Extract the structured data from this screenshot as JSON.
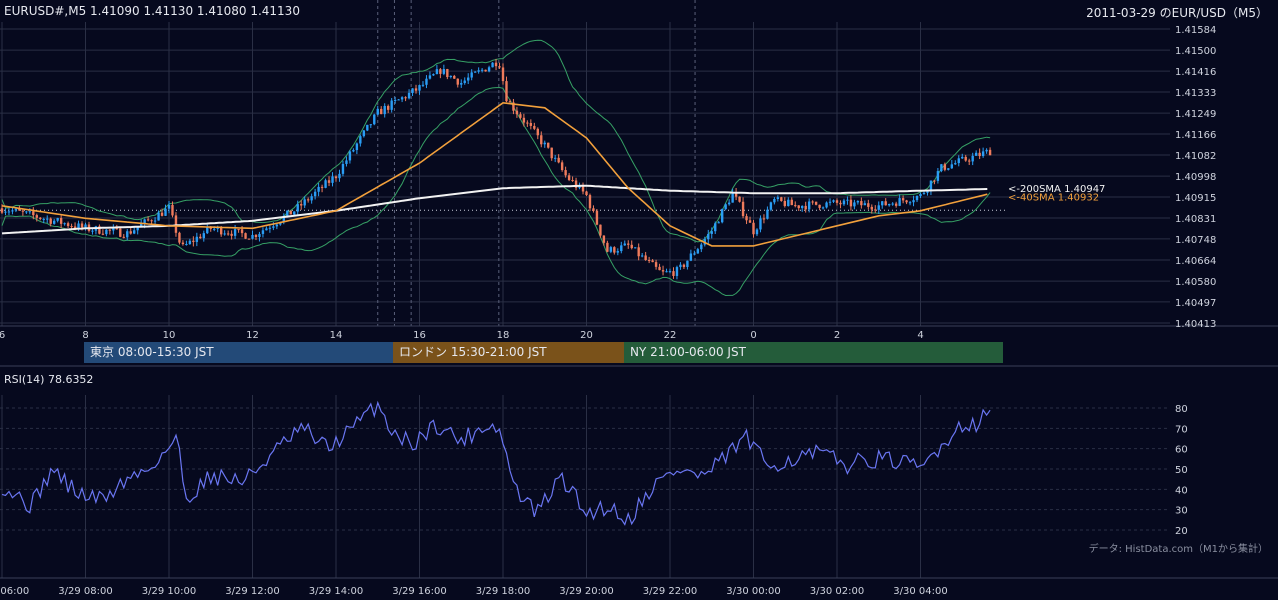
{
  "header": {
    "ohlc_text": "EURUSD#,M5 1.41090 1.41130 1.41080 1.41130",
    "title_right": "2011-03-29 のEUR/USD（M5）"
  },
  "sessions": {
    "tokyo": "東京 08:00-15:30 JST",
    "london": "ロンドン 15:30-21:00 JST",
    "ny": "NY 21:00-06:00 JST"
  },
  "footer": {
    "rsi_label": "RSI(14) 78.6352",
    "source": "データ: HistData.com（M1から集計）"
  },
  "colors": {
    "background": "#06091e",
    "up_candle": "#2a9df4",
    "down_candle": "#ef7b5c",
    "bollinger": "#36a065",
    "sma200": "#f2f2f2",
    "sma40": "#f2a03c",
    "rsi": "#6a76f2",
    "grid": "#2a2f45"
  },
  "chart_data": [
    {
      "type": "candlestick",
      "symbol": "EURUSD#",
      "timeframe": "M5",
      "ylim": [
        1.40413,
        1.41584
      ],
      "y_ticks": [
        "1.41584",
        "1.41500",
        "1.41416",
        "1.41333",
        "1.41249",
        "1.41166",
        "1.41082",
        "1.40998",
        "1.40915",
        "1.40831",
        "1.40748",
        "1.40664",
        "1.40580",
        "1.40497",
        "1.40413"
      ],
      "x_ticks": [
        "6",
        "8",
        "10",
        "12",
        "14",
        "16",
        "18",
        "20",
        "22",
        "0",
        "2",
        "4"
      ],
      "annotations": [
        "<-200SMA 1.40947",
        "<-40SMA 1.40932"
      ],
      "sma200_last": 1.40947,
      "sma40_last": 1.40932,
      "reference_price": 1.40862,
      "bollinger_bands": true,
      "path_points": [
        {
          "h": 6,
          "p": 1.4087
        },
        {
          "h": 7,
          "p": 1.4083
        },
        {
          "h": 8,
          "p": 1.4079
        },
        {
          "h": 9,
          "p": 1.4077
        },
        {
          "h": 10,
          "p": 1.4087
        },
        {
          "h": 10.3,
          "p": 1.4071
        },
        {
          "h": 11,
          "p": 1.4079
        },
        {
          "h": 12,
          "p": 1.4076
        },
        {
          "h": 13,
          "p": 1.4086
        },
        {
          "h": 14,
          "p": 1.41
        },
        {
          "h": 15,
          "p": 1.4125
        },
        {
          "h": 16,
          "p": 1.4135
        },
        {
          "h": 16.5,
          "p": 1.4142
        },
        {
          "h": 17,
          "p": 1.4137
        },
        {
          "h": 17.9,
          "p": 1.4146
        },
        {
          "h": 18.1,
          "p": 1.413
        },
        {
          "h": 19,
          "p": 1.4112
        },
        {
          "h": 19.5,
          "p": 1.41
        },
        {
          "h": 20,
          "p": 1.4092
        },
        {
          "h": 20.5,
          "p": 1.407
        },
        {
          "h": 21,
          "p": 1.4072
        },
        {
          "h": 21.8,
          "p": 1.4061
        },
        {
          "h": 22.2,
          "p": 1.4062
        },
        {
          "h": 23,
          "p": 1.4078
        },
        {
          "h": 23.5,
          "p": 1.4093
        },
        {
          "h": 24,
          "p": 1.4078
        },
        {
          "h": 24.5,
          "p": 1.409
        },
        {
          "h": 25,
          "p": 1.4088
        },
        {
          "h": 26,
          "p": 1.4089
        },
        {
          "h": 27,
          "p": 1.4088
        },
        {
          "h": 28,
          "p": 1.4092
        },
        {
          "h": 28.5,
          "p": 1.4103
        },
        {
          "h": 29.7,
          "p": 1.411
        }
      ],
      "sma40_path": [
        {
          "h": 6,
          "p": 1.4088
        },
        {
          "h": 8,
          "p": 1.4083
        },
        {
          "h": 10,
          "p": 1.408
        },
        {
          "h": 12,
          "p": 1.4079
        },
        {
          "h": 14,
          "p": 1.4086
        },
        {
          "h": 16,
          "p": 1.4105
        },
        {
          "h": 18,
          "p": 1.4129
        },
        {
          "h": 19,
          "p": 1.4127
        },
        {
          "h": 20,
          "p": 1.4115
        },
        {
          "h": 21,
          "p": 1.4095
        },
        {
          "h": 22,
          "p": 1.408
        },
        {
          "h": 23,
          "p": 1.4072
        },
        {
          "h": 24,
          "p": 1.4072
        },
        {
          "h": 25,
          "p": 1.4076
        },
        {
          "h": 26,
          "p": 1.408
        },
        {
          "h": 27,
          "p": 1.4084
        },
        {
          "h": 28,
          "p": 1.4086
        },
        {
          "h": 29.7,
          "p": 1.4093
        }
      ],
      "sma200_path": [
        {
          "h": 6,
          "p": 1.4077
        },
        {
          "h": 8,
          "p": 1.4079
        },
        {
          "h": 10,
          "p": 1.408
        },
        {
          "h": 12,
          "p": 1.4082
        },
        {
          "h": 14,
          "p": 1.4086
        },
        {
          "h": 16,
          "p": 1.4091
        },
        {
          "h": 18,
          "p": 1.4095
        },
        {
          "h": 20,
          "p": 1.4096
        },
        {
          "h": 21,
          "p": 1.4095
        },
        {
          "h": 22,
          "p": 1.4094
        },
        {
          "h": 24,
          "p": 1.4093
        },
        {
          "h": 26,
          "p": 1.4093
        },
        {
          "h": 28,
          "p": 1.4094
        },
        {
          "h": 29.7,
          "p": 1.40947
        }
      ]
    },
    {
      "type": "line",
      "name": "RSI(14)",
      "last_value": 78.6352,
      "ylim": [
        20,
        80
      ],
      "y_ticks": [
        "80",
        "70",
        "60",
        "50",
        "40",
        "30",
        "20"
      ],
      "x_ticks": [
        "3/29 06:00",
        "3/29 08:00",
        "3/29 10:00",
        "3/29 12:00",
        "3/29 14:00",
        "3/29 16:00",
        "3/29 18:00",
        "3/29 20:00",
        "3/29 22:00",
        "3/30 00:00",
        "3/30 02:00",
        "3/30 04:00"
      ],
      "path_points": [
        {
          "h": 6,
          "v": 42
        },
        {
          "h": 6.7,
          "v": 32
        },
        {
          "h": 7.2,
          "v": 50
        },
        {
          "h": 7.8,
          "v": 38
        },
        {
          "h": 8.4,
          "v": 35
        },
        {
          "h": 9,
          "v": 45
        },
        {
          "h": 9.5,
          "v": 50
        },
        {
          "h": 10.2,
          "v": 65
        },
        {
          "h": 10.4,
          "v": 35
        },
        {
          "h": 11,
          "v": 47
        },
        {
          "h": 11.8,
          "v": 44
        },
        {
          "h": 12.5,
          "v": 58
        },
        {
          "h": 13.2,
          "v": 70
        },
        {
          "h": 13.8,
          "v": 60
        },
        {
          "h": 14.5,
          "v": 72
        },
        {
          "h": 15,
          "v": 82
        },
        {
          "h": 15.3,
          "v": 70
        },
        {
          "h": 15.8,
          "v": 62
        },
        {
          "h": 16.4,
          "v": 72
        },
        {
          "h": 17,
          "v": 64
        },
        {
          "h": 17.6,
          "v": 72
        },
        {
          "h": 17.9,
          "v": 70
        },
        {
          "h": 18.3,
          "v": 40
        },
        {
          "h": 18.8,
          "v": 28
        },
        {
          "h": 19.4,
          "v": 46
        },
        {
          "h": 20,
          "v": 28
        },
        {
          "h": 20.5,
          "v": 32
        },
        {
          "h": 21,
          "v": 25
        },
        {
          "h": 21.6,
          "v": 42
        },
        {
          "h": 22.2,
          "v": 50
        },
        {
          "h": 22.8,
          "v": 46
        },
        {
          "h": 23.3,
          "v": 55
        },
        {
          "h": 23.8,
          "v": 66
        },
        {
          "h": 24.3,
          "v": 52
        },
        {
          "h": 25,
          "v": 55
        },
        {
          "h": 25.6,
          "v": 58
        },
        {
          "h": 26.2,
          "v": 52
        },
        {
          "h": 26.8,
          "v": 55
        },
        {
          "h": 27.4,
          "v": 54
        },
        {
          "h": 28,
          "v": 50
        },
        {
          "h": 28.5,
          "v": 62
        },
        {
          "h": 29,
          "v": 72
        },
        {
          "h": 29.4,
          "v": 73
        },
        {
          "h": 29.7,
          "v": 79
        }
      ]
    }
  ]
}
